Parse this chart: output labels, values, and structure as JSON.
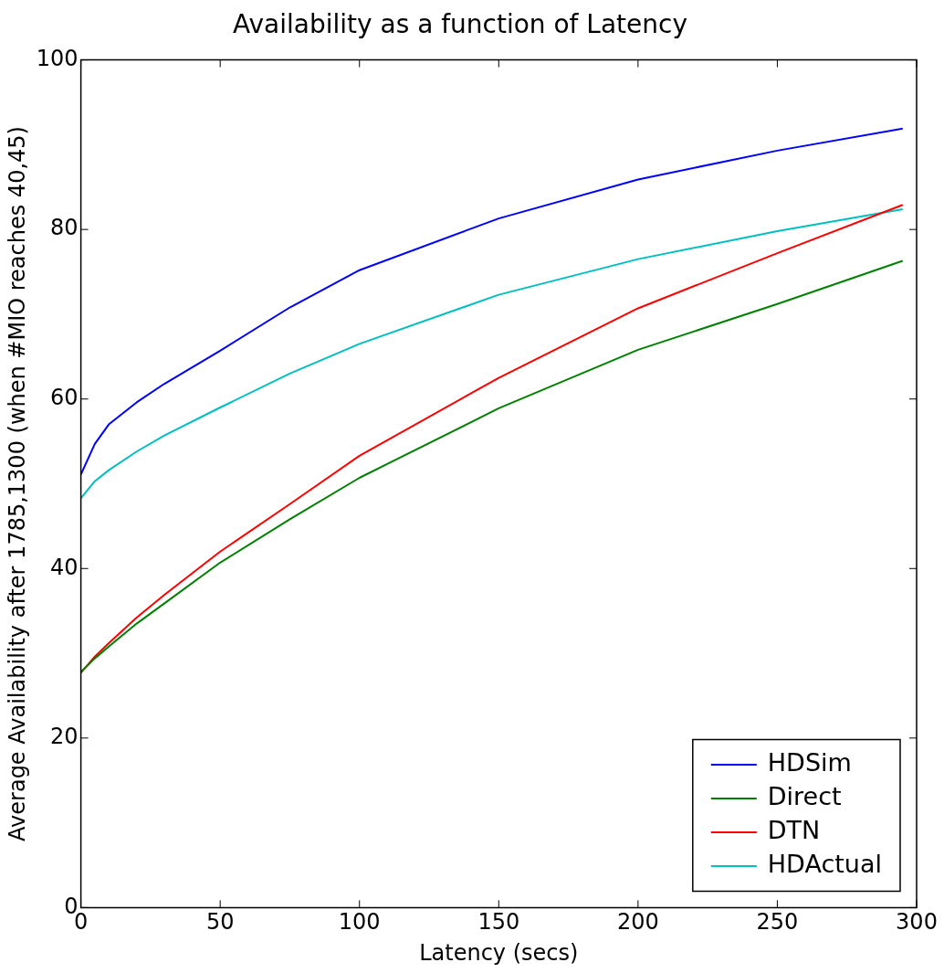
{
  "chart_data": {
    "type": "line",
    "title": "Availability as a function of Latency",
    "xlabel": "Latency (secs)",
    "ylabel": "Average Availability after 1785,1300 (when #MIO reaches 40,45)",
    "xlim": [
      0,
      300
    ],
    "xticks": [
      0,
      50,
      100,
      150,
      200,
      250,
      300
    ],
    "ylim": [
      0,
      100
    ],
    "yticks": [
      0,
      20,
      40,
      60,
      80,
      100
    ],
    "legend": "bottom right",
    "marker": "none",
    "line_style": "solid",
    "series": [
      {
        "name": "HDSim",
        "color": "#0000ff",
        "x": [
          0,
          5,
          10,
          20,
          30,
          50,
          75,
          100,
          150,
          200,
          250,
          295
        ],
        "values": [
          51.1,
          54.7,
          57,
          59.6,
          61.8,
          65.7,
          70.8,
          75.2,
          81.3,
          85.9,
          89.3,
          91.9
        ]
      },
      {
        "name": "Direct",
        "color": "#008000",
        "x": [
          0,
          5,
          10,
          20,
          30,
          50,
          75,
          100,
          150,
          200,
          250,
          295
        ],
        "values": [
          27.8,
          29.4,
          30.8,
          33.5,
          35.9,
          40.7,
          45.8,
          50.7,
          58.9,
          65.8,
          71.2,
          76.3
        ]
      },
      {
        "name": "DTN",
        "color": "#ff0000",
        "x": [
          0,
          5,
          10,
          20,
          30,
          50,
          75,
          100,
          150,
          200,
          250,
          295
        ],
        "values": [
          27.7,
          29.6,
          31.2,
          34.2,
          36.9,
          42,
          47.6,
          53.3,
          62.5,
          70.7,
          77.2,
          82.9
        ]
      },
      {
        "name": "HDActual",
        "color": "#00bfbf",
        "x": [
          0,
          5,
          10,
          20,
          30,
          50,
          75,
          100,
          150,
          200,
          250,
          295
        ],
        "values": [
          48.3,
          50.3,
          51.6,
          53.8,
          55.7,
          59,
          63,
          66.5,
          72.3,
          76.5,
          79.8,
          82.4
        ]
      }
    ]
  }
}
